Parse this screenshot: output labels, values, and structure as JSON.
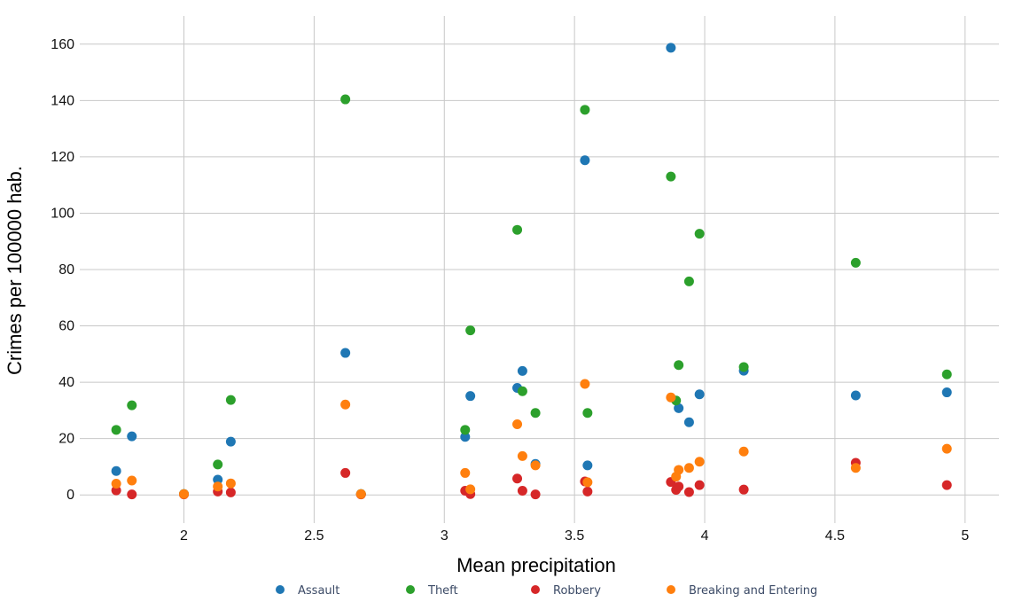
{
  "chart_data": {
    "type": "scatter",
    "title": "",
    "xlabel": "Mean precipitation",
    "ylabel": "Crimes per 100000 hab.",
    "xlim": [
      1.6,
      5.13
    ],
    "ylim": [
      -10,
      170
    ],
    "x_ticks": [
      2,
      2.5,
      3,
      3.5,
      4,
      4.5,
      5
    ],
    "x_tick_labels": [
      "2",
      "2.5",
      "3",
      "3.5",
      "4",
      "4.5",
      "5"
    ],
    "y_ticks": [
      0,
      20,
      40,
      60,
      80,
      100,
      120,
      140,
      160
    ],
    "y_tick_labels": [
      "0",
      "20",
      "40",
      "60",
      "80",
      "100",
      "120",
      "140",
      "160"
    ],
    "grid": true,
    "legend_position": "bottom",
    "series": [
      {
        "name": "Assault",
        "color": "#1f77b4",
        "points": [
          [
            1.74,
            8.5
          ],
          [
            1.8,
            20.8
          ],
          [
            2.0,
            0.3
          ],
          [
            2.13,
            5.4
          ],
          [
            2.18,
            18.9
          ],
          [
            2.62,
            50.4
          ],
          [
            2.68,
            0.3
          ],
          [
            3.08,
            20.6
          ],
          [
            3.1,
            35.1
          ],
          [
            3.28,
            38.0
          ],
          [
            3.3,
            44.0
          ],
          [
            3.35,
            11.0
          ],
          [
            3.54,
            118.8
          ],
          [
            3.55,
            10.5
          ],
          [
            3.87,
            158.7
          ],
          [
            3.9,
            30.8
          ],
          [
            3.94,
            25.8
          ],
          [
            3.98,
            35.7
          ],
          [
            4.15,
            44.1
          ],
          [
            4.58,
            35.3
          ],
          [
            4.93,
            36.4
          ]
        ]
      },
      {
        "name": "Theft",
        "color": "#2ca02c",
        "points": [
          [
            1.74,
            23.1
          ],
          [
            1.8,
            31.8
          ],
          [
            2.0,
            0.3
          ],
          [
            2.13,
            10.8
          ],
          [
            2.18,
            33.7
          ],
          [
            2.62,
            140.4
          ],
          [
            2.68,
            0.3
          ],
          [
            3.08,
            23.1
          ],
          [
            3.1,
            58.4
          ],
          [
            3.28,
            94.1
          ],
          [
            3.3,
            36.8
          ],
          [
            3.35,
            29.1
          ],
          [
            3.54,
            136.7
          ],
          [
            3.55,
            29.1
          ],
          [
            3.87,
            113.0
          ],
          [
            3.89,
            33.5
          ],
          [
            3.9,
            46.1
          ],
          [
            3.94,
            75.8
          ],
          [
            3.98,
            92.7
          ],
          [
            4.15,
            45.4
          ],
          [
            4.58,
            82.4
          ],
          [
            4.93,
            42.8
          ]
        ]
      },
      {
        "name": "Robbery",
        "color": "#d62728",
        "points": [
          [
            1.74,
            1.6
          ],
          [
            1.8,
            0.2
          ],
          [
            2.0,
            0.2
          ],
          [
            2.13,
            1.2
          ],
          [
            2.18,
            0.9
          ],
          [
            2.62,
            7.8
          ],
          [
            2.68,
            0.2
          ],
          [
            3.08,
            1.5
          ],
          [
            3.1,
            0.3
          ],
          [
            3.28,
            5.8
          ],
          [
            3.3,
            1.5
          ],
          [
            3.35,
            0.2
          ],
          [
            3.54,
            4.8
          ],
          [
            3.55,
            1.2
          ],
          [
            3.87,
            4.6
          ],
          [
            3.89,
            1.8
          ],
          [
            3.9,
            3.0
          ],
          [
            3.94,
            1.0
          ],
          [
            3.98,
            3.5
          ],
          [
            4.15,
            1.9
          ],
          [
            4.58,
            11.4
          ],
          [
            4.93,
            3.5
          ]
        ]
      },
      {
        "name": "Breaking and Entering",
        "color": "#ff7f0e",
        "points": [
          [
            1.74,
            4.0
          ],
          [
            1.8,
            5.1
          ],
          [
            2.0,
            0.3
          ],
          [
            2.13,
            3.0
          ],
          [
            2.18,
            4.1
          ],
          [
            2.62,
            32.1
          ],
          [
            2.68,
            0.3
          ],
          [
            3.08,
            7.8
          ],
          [
            3.1,
            2.0
          ],
          [
            3.28,
            25.1
          ],
          [
            3.3,
            13.8
          ],
          [
            3.35,
            10.5
          ],
          [
            3.54,
            39.4
          ],
          [
            3.55,
            4.5
          ],
          [
            3.87,
            34.6
          ],
          [
            3.89,
            6.5
          ],
          [
            3.9,
            8.9
          ],
          [
            3.94,
            9.6
          ],
          [
            3.98,
            11.8
          ],
          [
            4.15,
            15.4
          ],
          [
            4.58,
            9.6
          ],
          [
            4.93,
            16.4
          ]
        ]
      }
    ]
  }
}
